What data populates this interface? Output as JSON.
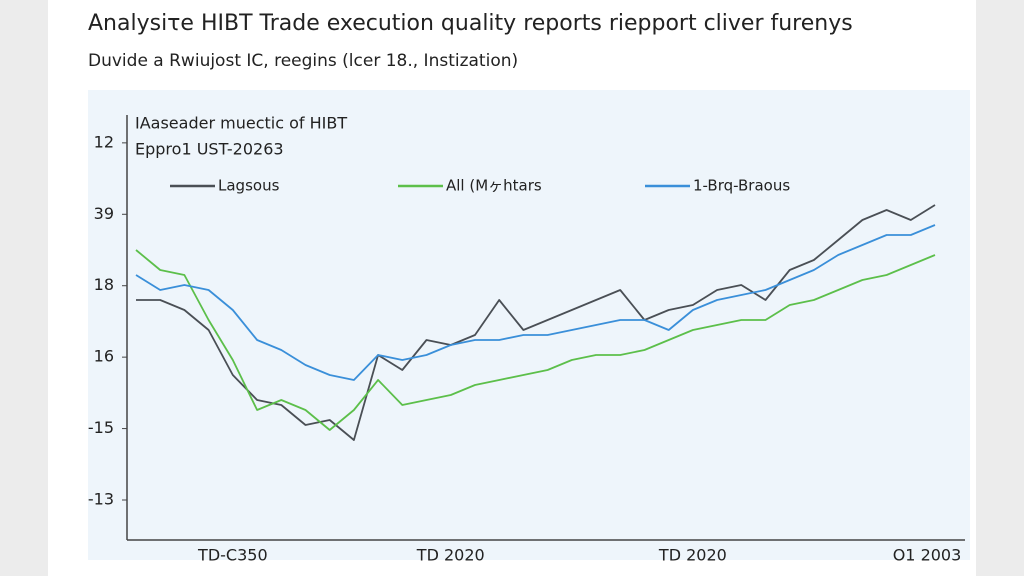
{
  "chart_data": {
    "type": "line",
    "title": "Analysiτe HIBT Trade execution quality reports riepport cliver furenys",
    "subtitle": "Duvide a Rwiujost IC, reegins (lcer 18., Instization)",
    "annotations": [
      "IAaseader muectic of HIBT",
      "Eppro1 UST-20263"
    ],
    "categories": [
      null,
      null,
      null,
      null,
      "TD-C350",
      null,
      null,
      null,
      null,
      null,
      null,
      null,
      null,
      "TD 2020",
      null,
      null,
      null,
      null,
      null,
      null,
      null,
      null,
      null,
      "TD 2020",
      null,
      null,
      null,
      null,
      null,
      null,
      null,
      null,
      null,
      "O1 2003"
    ],
    "series": [
      {
        "name": "Lagsous",
        "color": "#4a4f55",
        "values": [
          2.8,
          2.8,
          2.66,
          2.38,
          1.75,
          1.4,
          1.33,
          1.05,
          1.12,
          0.84,
          2.03,
          1.82,
          2.24,
          2.17,
          2.31,
          2.8,
          2.38,
          2.52,
          2.66,
          2.8,
          2.94,
          2.52,
          2.66,
          2.73,
          2.94,
          3.01,
          2.8,
          3.22,
          3.36,
          3.64,
          3.92,
          4.06,
          3.92,
          4.13
        ]
      },
      {
        "name": "All (Mヶhtars",
        "color": "#5cbf4a",
        "values": [
          3.5,
          3.22,
          3.15,
          2.52,
          1.96,
          1.26,
          1.4,
          1.26,
          0.98,
          1.26,
          1.68,
          1.33,
          1.4,
          1.47,
          1.61,
          1.68,
          1.75,
          1.82,
          1.96,
          2.03,
          2.03,
          2.1,
          2.24,
          2.38,
          2.45,
          2.52,
          2.52,
          2.73,
          2.8,
          2.94,
          3.08,
          3.15,
          3.29,
          3.43
        ]
      },
      {
        "name": "1-Brq-Braous",
        "color": "#3a8fd9",
        "values": [
          3.15,
          2.94,
          3.01,
          2.94,
          2.66,
          2.24,
          2.1,
          1.89,
          1.75,
          1.68,
          2.03,
          1.96,
          2.03,
          2.17,
          2.24,
          2.24,
          2.31,
          2.31,
          2.38,
          2.45,
          2.52,
          2.52,
          2.38,
          2.66,
          2.8,
          2.87,
          2.94,
          3.08,
          3.22,
          3.43,
          3.57,
          3.71,
          3.71,
          3.85
        ]
      }
    ],
    "ylim": [
      -0.56,
      5.74
    ],
    "yticks": [
      0,
      1,
      2,
      3,
      4,
      5
    ],
    "ytick_labels": [
      "-13",
      "-15",
      "16",
      "18",
      "39",
      "12"
    ],
    "grid": false,
    "legend": "top"
  }
}
